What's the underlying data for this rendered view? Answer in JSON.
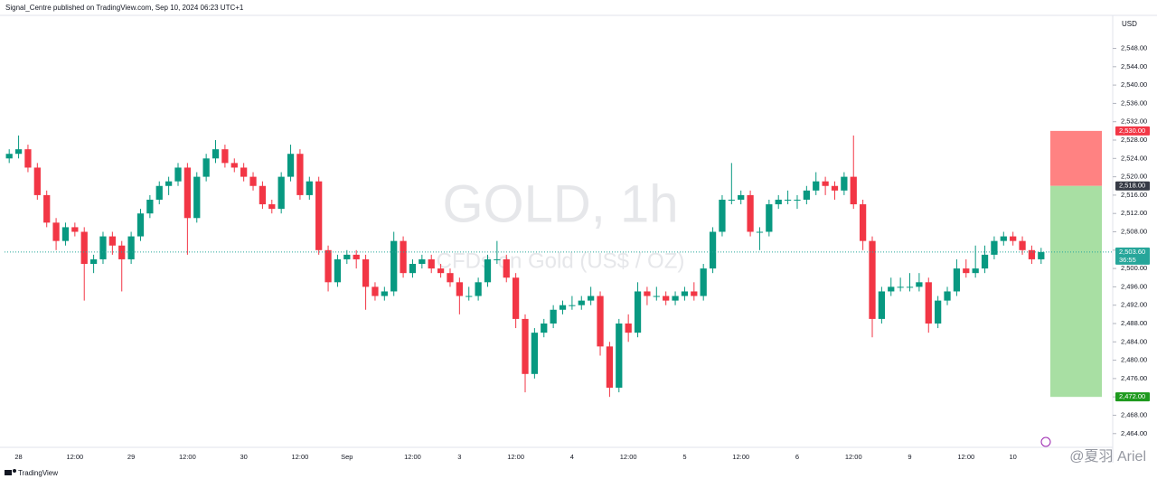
{
  "chart_data": {
    "type": "candlestick",
    "header": "Signal_Centre published on TradingView.com, Sep 10, 2024 06:23 UTC+1",
    "title": "GOLD, 1h",
    "subtitle": "CFDs on Gold (US$ / OZ)",
    "currency": "USD",
    "brand": "TradingView",
    "watermark": "@夏羽 Ariel",
    "up_color": "#089981",
    "down_color": "#f23645",
    "ylim": [
      2461,
      2555
    ],
    "yticks": [
      {
        "value": 2464,
        "label": "2,464.00"
      },
      {
        "value": 2468,
        "label": "2,468.00"
      },
      {
        "value": 2472,
        "label": "2,472.00"
      },
      {
        "value": 2476,
        "label": "2,476.00"
      },
      {
        "value": 2480,
        "label": "2,480.00"
      },
      {
        "value": 2484,
        "label": "2,484.00"
      },
      {
        "value": 2488,
        "label": "2,488.00"
      },
      {
        "value": 2492,
        "label": "2,492.00"
      },
      {
        "value": 2496,
        "label": "2,496.00"
      },
      {
        "value": 2500,
        "label": "2,500.00"
      },
      {
        "value": 2504,
        "label": "2,504.00"
      },
      {
        "value": 2508,
        "label": "2,508.00"
      },
      {
        "value": 2512,
        "label": "2,512.00"
      },
      {
        "value": 2516,
        "label": "2,516.00"
      },
      {
        "value": 2520,
        "label": "2,520.00"
      },
      {
        "value": 2524,
        "label": "2,524.00"
      },
      {
        "value": 2528,
        "label": "2,528.00"
      },
      {
        "value": 2532,
        "label": "2,532.00"
      },
      {
        "value": 2536,
        "label": "2,536.00"
      },
      {
        "value": 2540,
        "label": "2,540.00"
      },
      {
        "value": 2544,
        "label": "2,544.00"
      },
      {
        "value": 2548,
        "label": "2,548.00"
      }
    ],
    "categories": [
      null,
      "28",
      null,
      null,
      null,
      null,
      null,
      "12:00",
      null,
      null,
      null,
      null,
      null,
      "29",
      null,
      null,
      null,
      null,
      null,
      "12:00",
      null,
      null,
      null,
      null,
      null,
      "30",
      null,
      null,
      null,
      null,
      null,
      "12:00",
      null,
      null,
      null,
      null,
      "Sep",
      null,
      null,
      null,
      null,
      null,
      null,
      "12:00",
      null,
      null,
      null,
      null,
      "3",
      null,
      null,
      null,
      null,
      null,
      "12:00",
      null,
      null,
      null,
      null,
      null,
      "4",
      null,
      null,
      null,
      null,
      null,
      "12:00",
      null,
      null,
      null,
      null,
      null,
      "5",
      null,
      null,
      null,
      null,
      null,
      "12:00",
      null,
      null,
      null,
      null,
      null,
      "6",
      null,
      null,
      null,
      null,
      null,
      "12:00",
      null,
      null,
      null,
      null,
      null,
      "9",
      null,
      null,
      null,
      null,
      null,
      "12:00",
      null,
      null,
      null,
      null,
      "10",
      null,
      null,
      null
    ],
    "candles": [
      [
        2524,
        2526,
        2523,
        2525
      ],
      [
        2525,
        2529,
        2524,
        2526
      ],
      [
        2526,
        2527,
        2521,
        2522
      ],
      [
        2522,
        2523,
        2515,
        2516
      ],
      [
        2516,
        2517,
        2509,
        2510
      ],
      [
        2510,
        2511,
        2504,
        2506
      ],
      [
        2506,
        2510,
        2505,
        2509
      ],
      [
        2509,
        2510,
        2507,
        2508
      ],
      [
        2508,
        2509,
        2493,
        2501
      ],
      [
        2501,
        2503,
        2499,
        2502
      ],
      [
        2502,
        2508,
        2501,
        2507
      ],
      [
        2507,
        2508,
        2503,
        2505
      ],
      [
        2505,
        2506,
        2495,
        2502
      ],
      [
        2502,
        2508,
        2501,
        2507
      ],
      [
        2507,
        2513,
        2506,
        2512
      ],
      [
        2512,
        2516,
        2511,
        2515
      ],
      [
        2515,
        2519,
        2514,
        2518
      ],
      [
        2518,
        2520,
        2516,
        2519
      ],
      [
        2519,
        2523,
        2518,
        2522
      ],
      [
        2522,
        2523,
        2503,
        2511
      ],
      [
        2511,
        2521,
        2510,
        2520
      ],
      [
        2520,
        2525,
        2519,
        2524
      ],
      [
        2524,
        2528,
        2523,
        2526
      ],
      [
        2526,
        2527,
        2522,
        2523
      ],
      [
        2523,
        2524,
        2521,
        2522
      ],
      [
        2522,
        2523,
        2519,
        2520
      ],
      [
        2520,
        2521,
        2517,
        2518
      ],
      [
        2518,
        2519,
        2513,
        2514
      ],
      [
        2514,
        2515,
        2512,
        2513
      ],
      [
        2513,
        2521,
        2512,
        2520
      ],
      [
        2520,
        2527,
        2519,
        2525
      ],
      [
        2525,
        2526,
        2515,
        2516
      ],
      [
        2516,
        2520,
        2515,
        2519
      ],
      [
        2519,
        2520,
        2503,
        2504
      ],
      [
        2504,
        2505,
        2495,
        2497
      ],
      [
        2497,
        2503,
        2496,
        2502
      ],
      [
        2502,
        2504,
        2501,
        2503
      ],
      [
        2503,
        2504,
        2500,
        2502
      ],
      [
        2502,
        2503,
        2491,
        2496
      ],
      [
        2496,
        2497,
        2493,
        2494
      ],
      [
        2494,
        2496,
        2493,
        2495
      ],
      [
        2495,
        2508,
        2494,
        2506
      ],
      [
        2506,
        2507,
        2498,
        2499
      ],
      [
        2499,
        2502,
        2498,
        2501
      ],
      [
        2501,
        2503,
        2500,
        2502
      ],
      [
        2502,
        2503,
        2499,
        2500
      ],
      [
        2500,
        2501,
        2498,
        2499
      ],
      [
        2499,
        2500,
        2496,
        2497
      ],
      [
        2497,
        2498,
        2490,
        2494
      ],
      [
        2494,
        2496,
        2493,
        2494
      ],
      [
        2494,
        2498,
        2493,
        2497
      ],
      [
        2497,
        2503,
        2496,
        2502
      ],
      [
        2502,
        2506,
        2501,
        2502
      ],
      [
        2502,
        2503,
        2497,
        2498
      ],
      [
        2498,
        2499,
        2487,
        2489
      ],
      [
        2489,
        2490,
        2473,
        2477
      ],
      [
        2477,
        2487,
        2476,
        2486
      ],
      [
        2486,
        2489,
        2485,
        2488
      ],
      [
        2488,
        2492,
        2487,
        2491
      ],
      [
        2491,
        2493,
        2490,
        2492
      ],
      [
        2492,
        2494,
        2491,
        2492
      ],
      [
        2492,
        2494,
        2491,
        2493
      ],
      [
        2493,
        2496,
        2492,
        2494
      ],
      [
        2494,
        2495,
        2481,
        2483
      ],
      [
        2483,
        2484,
        2472,
        2474
      ],
      [
        2474,
        2489,
        2473,
        2488
      ],
      [
        2488,
        2490,
        2484,
        2486
      ],
      [
        2486,
        2497,
        2485,
        2495
      ],
      [
        2495,
        2496,
        2492,
        2494
      ],
      [
        2494,
        2496,
        2493,
        2494
      ],
      [
        2494,
        2495,
        2492,
        2493
      ],
      [
        2493,
        2495,
        2492,
        2494
      ],
      [
        2494,
        2496,
        2493,
        2495
      ],
      [
        2495,
        2497,
        2493,
        2494
      ],
      [
        2494,
        2501,
        2493,
        2500
      ],
      [
        2500,
        2509,
        2499,
        2508
      ],
      [
        2508,
        2516,
        2507,
        2515
      ],
      [
        2515,
        2523,
        2514,
        2515
      ],
      [
        2515,
        2517,
        2514,
        2516
      ],
      [
        2516,
        2517,
        2507,
        2508
      ],
      [
        2508,
        2509,
        2504,
        2508
      ],
      [
        2508,
        2515,
        2507,
        2514
      ],
      [
        2514,
        2516,
        2513,
        2515
      ],
      [
        2515,
        2517,
        2514,
        2515
      ],
      [
        2515,
        2516,
        2513,
        2515
      ],
      [
        2515,
        2518,
        2514,
        2517
      ],
      [
        2517,
        2521,
        2516,
        2519
      ],
      [
        2519,
        2520,
        2516,
        2518
      ],
      [
        2518,
        2519,
        2515,
        2517
      ],
      [
        2517,
        2521,
        2516,
        2520
      ],
      [
        2520,
        2529,
        2513,
        2514
      ],
      [
        2514,
        2515,
        2504,
        2506
      ],
      [
        2506,
        2507,
        2485,
        2489
      ],
      [
        2489,
        2496,
        2488,
        2495
      ],
      [
        2495,
        2498,
        2494,
        2496
      ],
      [
        2496,
        2498,
        2495,
        2496
      ],
      [
        2496,
        2499,
        2495,
        2496
      ],
      [
        2496,
        2499,
        2495,
        2497
      ],
      [
        2497,
        2498,
        2486,
        2488
      ],
      [
        2488,
        2494,
        2487,
        2493
      ],
      [
        2493,
        2496,
        2492,
        2495
      ],
      [
        2495,
        2502,
        2494,
        2500
      ],
      [
        2500,
        2502,
        2498,
        2499
      ],
      [
        2499,
        2505,
        2498,
        2500
      ],
      [
        2500,
        2505,
        2499,
        2503
      ],
      [
        2503,
        2507,
        2502,
        2506
      ],
      [
        2506,
        2508,
        2505,
        2507
      ],
      [
        2507,
        2508,
        2505,
        2506
      ],
      [
        2506,
        2507,
        2503,
        2504
      ],
      [
        2504,
        2505,
        2501,
        2502
      ],
      [
        2502,
        2504.5,
        2501,
        2503.6
      ]
    ],
    "position": {
      "stop": {
        "value": 2530,
        "label": "2,530.00",
        "color": "#f23645"
      },
      "entry": {
        "value": 2518,
        "label": "2,518.00",
        "color": "#363a45"
      },
      "target": {
        "value": 2472,
        "label": "2,472.00",
        "color": "#1e9a1e"
      }
    },
    "last_price": {
      "value": 2503.6,
      "label": "2,503.60",
      "countdown": "36:55",
      "color": "#26a69a"
    }
  }
}
